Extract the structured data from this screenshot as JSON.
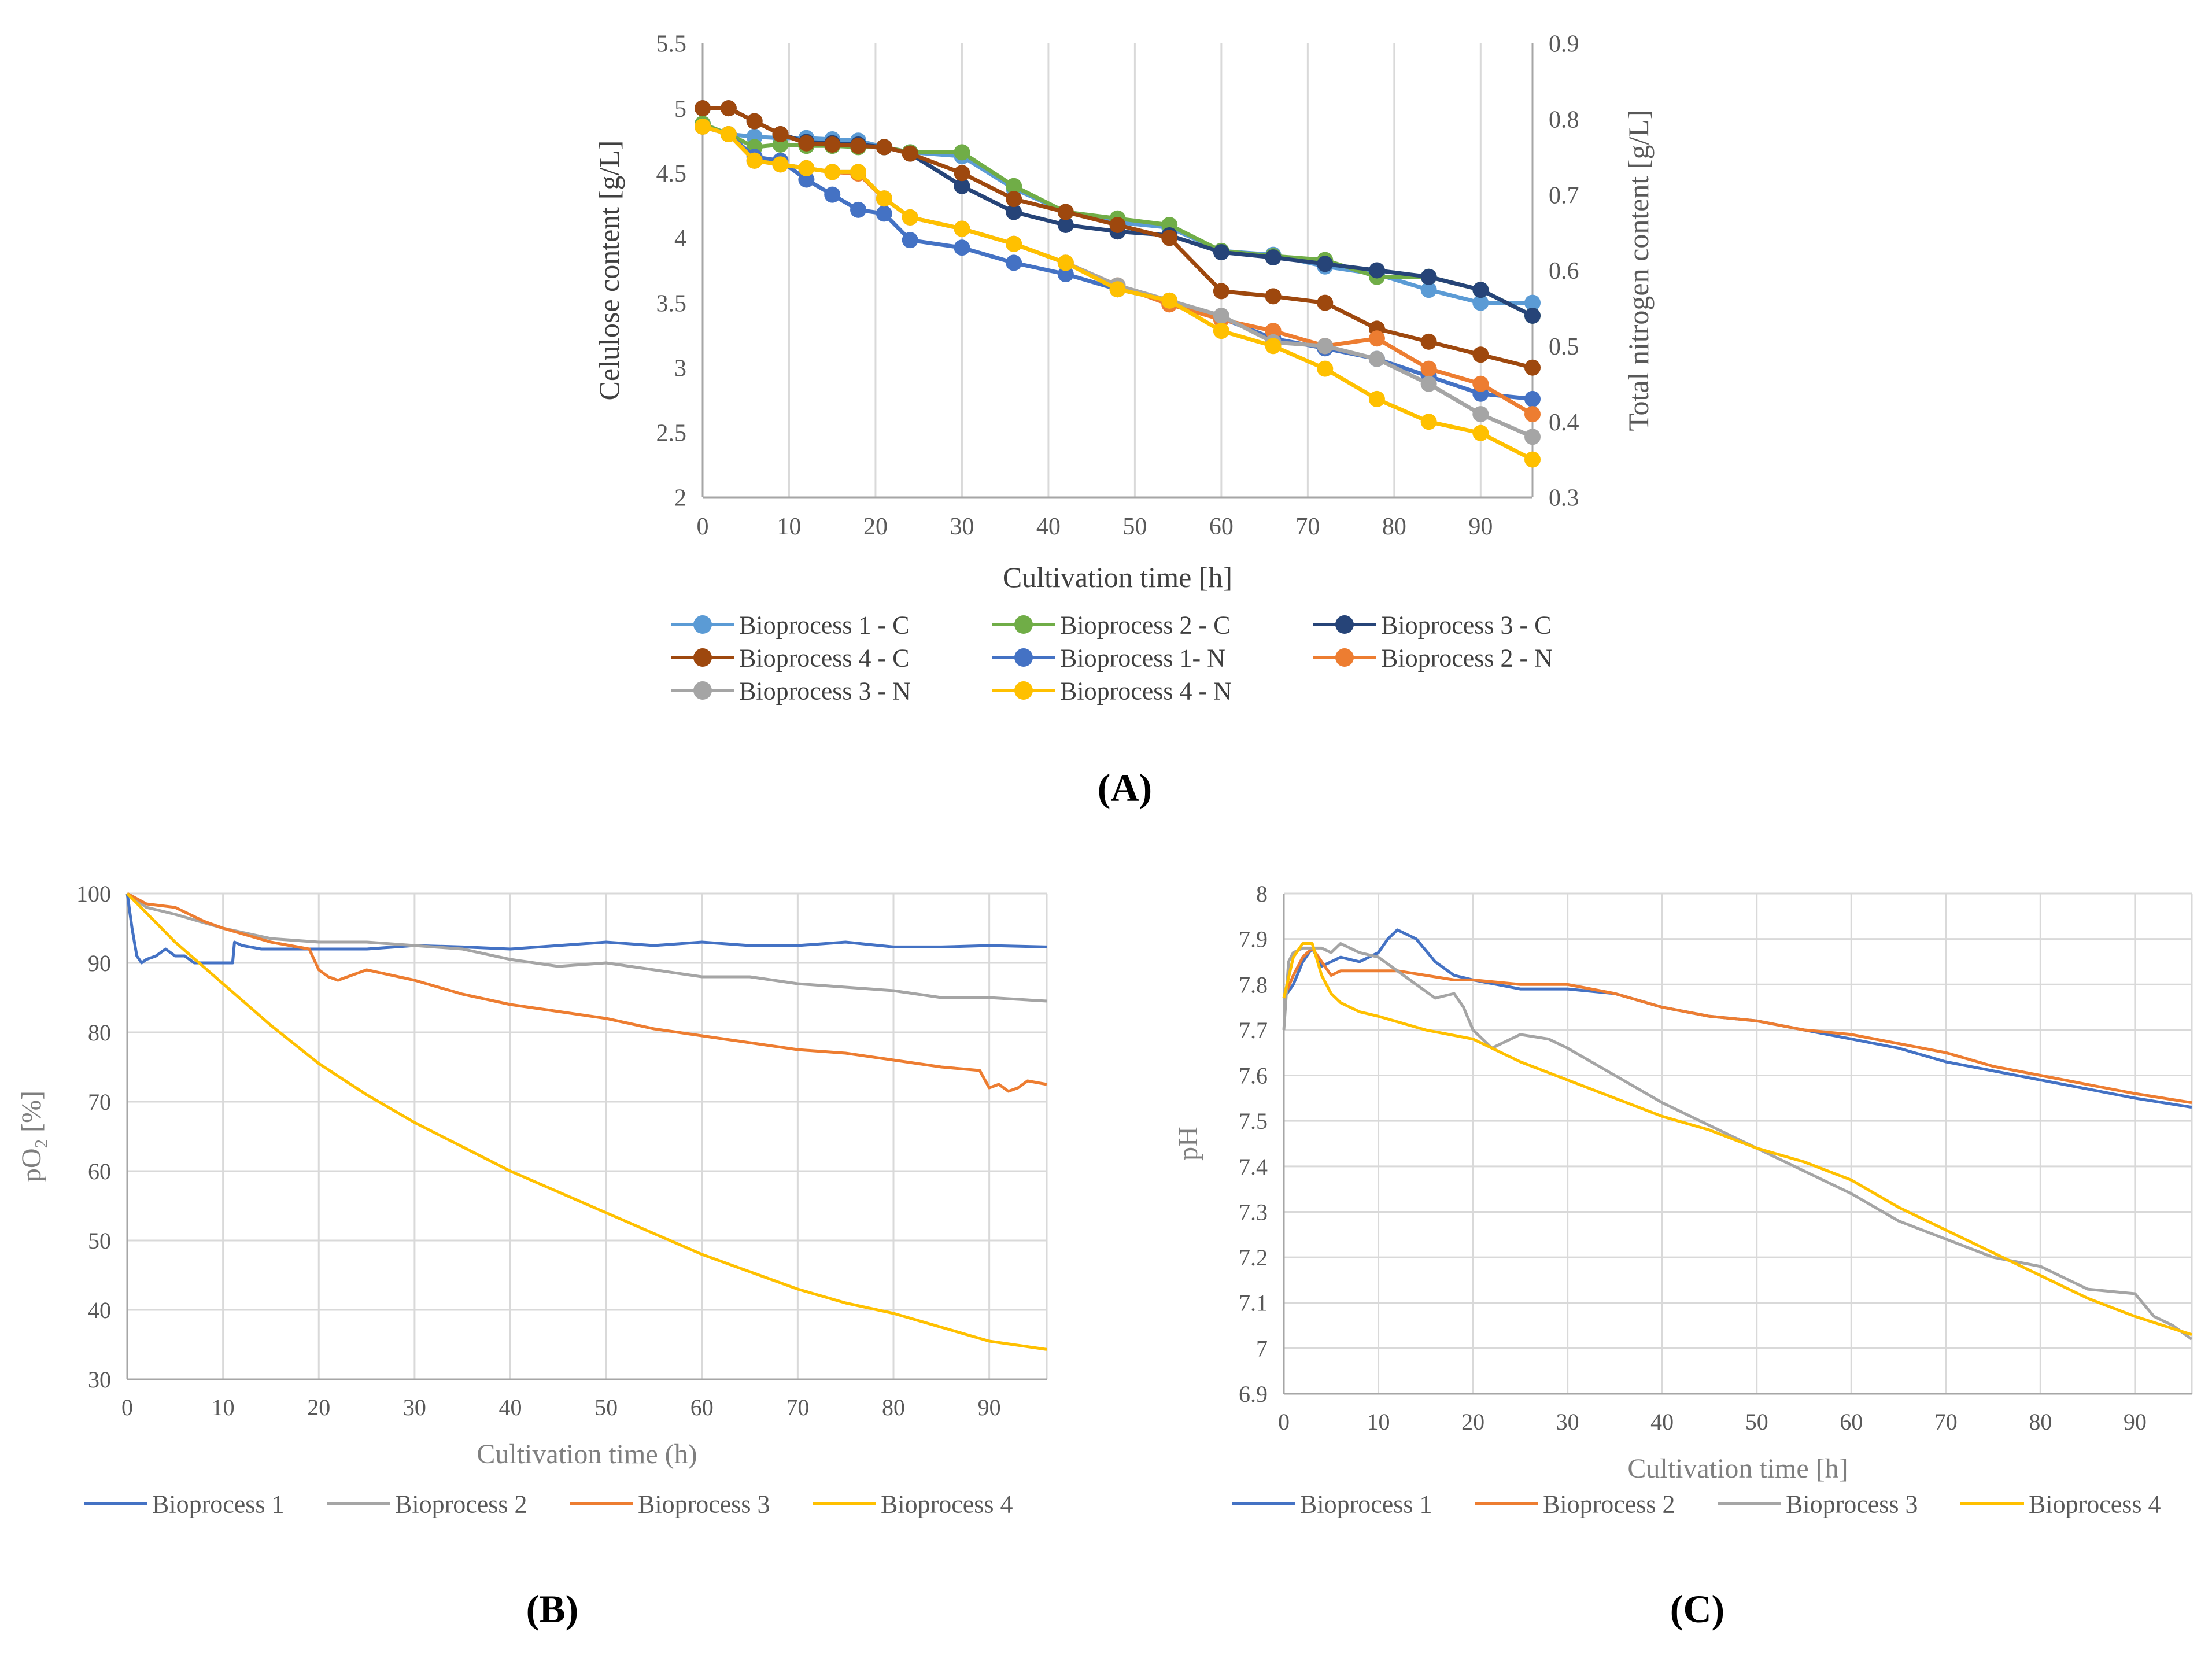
{
  "panel_labels": {
    "A": "(A)",
    "B": "(B)",
    "C": "(C)"
  },
  "chart_data": [
    {
      "id": "A",
      "type": "line",
      "title": "",
      "xlabel": "Cultivation time [h]",
      "ylabel": "Celulose content [g/L]",
      "y2label": "Total nitrogen content [g/L]",
      "xlim": [
        0,
        96
      ],
      "ylim": [
        2,
        5.5
      ],
      "y2lim": [
        0.3,
        0.9
      ],
      "xticks": [
        0,
        10,
        20,
        30,
        40,
        50,
        60,
        70,
        80,
        90
      ],
      "yticks": [
        2,
        2.5,
        3,
        3.5,
        4,
        4.5,
        5,
        5.5
      ],
      "y2ticks": [
        0.3,
        0.4,
        0.5,
        0.6,
        0.7,
        0.8,
        0.9
      ],
      "grid": "vertical",
      "markers": true,
      "legend_position": "bottom",
      "legend_columns": 3,
      "series": [
        {
          "name": "Bioprocess 1 - C",
          "color": "#5B9BD5",
          "axis": "left",
          "x": [
            0,
            3,
            6,
            9,
            12,
            15,
            18,
            21,
            24,
            30,
            36,
            42,
            48,
            54,
            60,
            66,
            72,
            78,
            84,
            90,
            96
          ],
          "y": [
            4.88,
            4.8,
            4.78,
            4.77,
            4.77,
            4.76,
            4.75,
            4.7,
            4.66,
            4.63,
            4.38,
            4.2,
            4.12,
            4.08,
            3.9,
            3.87,
            3.78,
            3.72,
            3.6,
            3.5,
            3.5
          ]
        },
        {
          "name": "Bioprocess 2 - C",
          "color": "#70AD47",
          "axis": "left",
          "x": [
            0,
            3,
            6,
            9,
            12,
            15,
            18,
            21,
            24,
            30,
            36,
            42,
            48,
            54,
            60,
            66,
            72,
            78,
            84,
            90,
            96
          ],
          "y": [
            4.88,
            4.8,
            4.7,
            4.72,
            4.71,
            4.71,
            4.7,
            4.7,
            4.66,
            4.66,
            4.4,
            4.2,
            4.15,
            4.1,
            3.9,
            3.86,
            3.83,
            3.7,
            3.7,
            3.6,
            3.4
          ]
        },
        {
          "name": "Bioprocess 3 - C",
          "color": "#264478",
          "axis": "left",
          "x": [
            0,
            3,
            6,
            9,
            12,
            15,
            18,
            21,
            24,
            30,
            36,
            42,
            48,
            54,
            60,
            66,
            72,
            78,
            84,
            90,
            96
          ],
          "y": [
            5.0,
            5.0,
            4.9,
            4.8,
            4.74,
            4.73,
            4.72,
            4.7,
            4.65,
            4.4,
            4.2,
            4.1,
            4.05,
            4.02,
            3.89,
            3.85,
            3.8,
            3.75,
            3.7,
            3.6,
            3.4
          ]
        },
        {
          "name": "Bioprocess 4 - C",
          "color": "#9E480E",
          "axis": "left",
          "x": [
            0,
            3,
            6,
            9,
            12,
            15,
            18,
            21,
            24,
            30,
            36,
            42,
            48,
            54,
            60,
            66,
            72,
            78,
            84,
            90,
            96
          ],
          "y": [
            5.0,
            5.0,
            4.9,
            4.8,
            4.73,
            4.72,
            4.71,
            4.7,
            4.65,
            4.5,
            4.3,
            4.2,
            4.1,
            4.0,
            3.59,
            3.55,
            3.5,
            3.3,
            3.2,
            3.1,
            3.0
          ]
        },
        {
          "name": "Bioprocess 1- N",
          "color": "#4472C4",
          "axis": "right",
          "x": [
            0,
            3,
            6,
            9,
            12,
            15,
            18,
            21,
            24,
            30,
            36,
            42,
            48,
            54,
            60,
            66,
            72,
            78,
            84,
            90,
            96
          ],
          "y": [
            0.79,
            0.78,
            0.75,
            0.745,
            0.72,
            0.7,
            0.68,
            0.675,
            0.64,
            0.63,
            0.61,
            0.595,
            0.575,
            0.56,
            0.537,
            0.51,
            0.497,
            0.483,
            0.46,
            0.437,
            0.43
          ]
        },
        {
          "name": "Bioprocess 2 - N",
          "color": "#ED7D31",
          "axis": "right",
          "x": [
            0,
            3,
            6,
            9,
            12,
            15,
            18,
            21,
            24,
            30,
            36,
            42,
            48,
            54,
            60,
            66,
            72,
            78,
            84,
            90,
            96
          ],
          "y": [
            0.79,
            0.78,
            0.745,
            0.74,
            0.735,
            0.73,
            0.728,
            0.695,
            0.67,
            0.655,
            0.635,
            0.61,
            0.58,
            0.555,
            0.535,
            0.52,
            0.5,
            0.51,
            0.47,
            0.45,
            0.41
          ]
        },
        {
          "name": "Bioprocess 3 - N",
          "color": "#A5A5A5",
          "axis": "right",
          "x": [
            0,
            3,
            6,
            9,
            12,
            15,
            18,
            21,
            24,
            30,
            36,
            42,
            48,
            54,
            60,
            66,
            72,
            78,
            84,
            90,
            96
          ],
          "y": [
            0.79,
            0.78,
            0.745,
            0.74,
            0.735,
            0.73,
            0.73,
            0.695,
            0.67,
            0.655,
            0.635,
            0.61,
            0.58,
            0.56,
            0.54,
            0.505,
            0.5,
            0.483,
            0.45,
            0.41,
            0.38
          ]
        },
        {
          "name": "Bioprocess 4 - N",
          "color": "#FFC000",
          "axis": "right",
          "x": [
            0,
            3,
            6,
            9,
            12,
            15,
            18,
            21,
            24,
            30,
            36,
            42,
            48,
            54,
            60,
            66,
            72,
            78,
            84,
            90,
            96
          ],
          "y": [
            0.79,
            0.78,
            0.745,
            0.74,
            0.735,
            0.73,
            0.73,
            0.695,
            0.67,
            0.655,
            0.635,
            0.61,
            0.575,
            0.56,
            0.52,
            0.5,
            0.47,
            0.43,
            0.4,
            0.385,
            0.35
          ]
        }
      ]
    },
    {
      "id": "B",
      "type": "line",
      "title": "",
      "xlabel": "Cultivation time (h)",
      "ylabel_main": "pO",
      "ylabel_sub": "2",
      "ylabel_tail": " [%]",
      "xlim": [
        0,
        96
      ],
      "ylim": [
        30,
        100
      ],
      "xticks": [
        0,
        10,
        20,
        30,
        40,
        50,
        60,
        70,
        80,
        90
      ],
      "yticks": [
        30,
        40,
        50,
        60,
        70,
        80,
        90,
        100
      ],
      "grid": "both",
      "markers": false,
      "legend_position": "bottom",
      "series": [
        {
          "name": "Bioprocess 1",
          "color": "#4472C4",
          "x": [
            0,
            0.5,
            1,
            1.5,
            2,
            3,
            4,
            5,
            6,
            7,
            8,
            9,
            10,
            11,
            11.2,
            12,
            14,
            16,
            18,
            20,
            25,
            30,
            35,
            40,
            45,
            50,
            55,
            60,
            65,
            70,
            75,
            80,
            85,
            90,
            96
          ],
          "y": [
            100,
            95,
            91,
            90,
            90.5,
            91,
            92,
            91,
            91,
            90,
            90,
            90,
            90,
            90,
            93,
            92.5,
            92,
            92,
            92,
            92,
            92,
            92.5,
            92.3,
            92,
            92.5,
            93,
            92.5,
            93,
            92.5,
            92.5,
            93,
            92.3,
            92.3,
            92.5,
            92.3
          ]
        },
        {
          "name": "Bioprocess 2",
          "color": "#A5A5A5",
          "x": [
            0,
            2,
            5,
            10,
            15,
            20,
            25,
            30,
            35,
            40,
            45,
            50,
            55,
            60,
            65,
            70,
            75,
            80,
            85,
            90,
            96
          ],
          "y": [
            100,
            98,
            97,
            95,
            93.5,
            93,
            93,
            92.5,
            92,
            90.5,
            89.5,
            90,
            89,
            88,
            88,
            87,
            86.5,
            86,
            85,
            85,
            84.5
          ]
        },
        {
          "name": "Bioprocess 3",
          "color": "#ED7D31",
          "x": [
            0,
            2,
            5,
            8,
            10,
            15,
            19,
            20,
            21,
            22,
            25,
            30,
            35,
            40,
            45,
            50,
            55,
            60,
            65,
            70,
            75,
            80,
            85,
            89,
            90,
            91,
            92,
            93,
            94,
            96
          ],
          "y": [
            100,
            98.5,
            98,
            96,
            95,
            93,
            92,
            89,
            88,
            87.5,
            89,
            87.5,
            85.5,
            84,
            83,
            82,
            80.5,
            79.5,
            78.5,
            77.5,
            77,
            76,
            75,
            74.5,
            72,
            72.5,
            71.5,
            72,
            73,
            72.5
          ]
        },
        {
          "name": "Bioprocess 4",
          "color": "#FFC000",
          "x": [
            0,
            5,
            10,
            15,
            20,
            25,
            30,
            35,
            40,
            45,
            50,
            55,
            60,
            65,
            70,
            75,
            80,
            85,
            90,
            96
          ],
          "y": [
            100,
            93,
            87,
            81,
            75.5,
            71,
            67,
            63.5,
            60,
            57,
            54,
            51,
            48,
            45.5,
            43,
            41,
            39.5,
            37.5,
            35.5,
            34.3
          ]
        }
      ]
    },
    {
      "id": "C",
      "type": "line",
      "title": "",
      "xlabel": "Cultivation time [h]",
      "ylabel": "pH",
      "xlim": [
        0,
        96
      ],
      "ylim": [
        6.9,
        8.0
      ],
      "xticks": [
        0,
        10,
        20,
        30,
        40,
        50,
        60,
        70,
        80,
        90
      ],
      "yticks": [
        6.9,
        7,
        7.1,
        7.2,
        7.3,
        7.4,
        7.5,
        7.6,
        7.7,
        7.8,
        7.9,
        8
      ],
      "grid": "both",
      "markers": false,
      "legend_position": "bottom",
      "series": [
        {
          "name": "Bioprocess 1",
          "color": "#4472C4",
          "x": [
            0,
            1,
            2,
            3,
            4,
            5,
            6,
            8,
            10,
            11,
            12,
            14,
            16,
            18,
            20,
            25,
            30,
            35,
            40,
            45,
            50,
            55,
            60,
            65,
            70,
            75,
            80,
            85,
            90,
            96
          ],
          "y": [
            7.77,
            7.8,
            7.85,
            7.88,
            7.84,
            7.85,
            7.86,
            7.85,
            7.87,
            7.9,
            7.92,
            7.9,
            7.85,
            7.82,
            7.81,
            7.79,
            7.79,
            7.78,
            7.75,
            7.73,
            7.72,
            7.7,
            7.68,
            7.66,
            7.63,
            7.61,
            7.59,
            7.57,
            7.55,
            7.53
          ]
        },
        {
          "name": "Bioprocess 2",
          "color": "#ED7D31",
          "x": [
            0,
            1,
            2,
            3,
            4,
            5,
            6,
            8,
            10,
            12,
            15,
            18,
            20,
            25,
            30,
            35,
            40,
            45,
            50,
            55,
            60,
            65,
            70,
            75,
            80,
            85,
            90,
            96
          ],
          "y": [
            7.77,
            7.82,
            7.86,
            7.88,
            7.85,
            7.82,
            7.83,
            7.83,
            7.83,
            7.83,
            7.82,
            7.81,
            7.81,
            7.8,
            7.8,
            7.78,
            7.75,
            7.73,
            7.72,
            7.7,
            7.69,
            7.67,
            7.65,
            7.62,
            7.6,
            7.58,
            7.56,
            7.54
          ]
        },
        {
          "name": "Bioprocess 3",
          "color": "#A5A5A5",
          "x": [
            0,
            0.5,
            1,
            2,
            3,
            4,
            5,
            6,
            8,
            10,
            12,
            14,
            16,
            18,
            19,
            20,
            21,
            22,
            23,
            25,
            28,
            30,
            35,
            40,
            45,
            50,
            55,
            60,
            65,
            70,
            75,
            80,
            85,
            90,
            92,
            94,
            96
          ],
          "y": [
            7.7,
            7.85,
            7.87,
            7.88,
            7.88,
            7.88,
            7.87,
            7.89,
            7.87,
            7.86,
            7.83,
            7.8,
            7.77,
            7.78,
            7.75,
            7.7,
            7.68,
            7.66,
            7.67,
            7.69,
            7.68,
            7.66,
            7.6,
            7.54,
            7.49,
            7.44,
            7.39,
            7.34,
            7.28,
            7.24,
            7.2,
            7.18,
            7.13,
            7.12,
            7.07,
            7.05,
            7.02
          ]
        },
        {
          "name": "Bioprocess 4",
          "color": "#FFC000",
          "x": [
            0,
            1,
            2,
            3,
            4,
            5,
            6,
            8,
            10,
            15,
            20,
            25,
            30,
            35,
            40,
            45,
            50,
            55,
            60,
            65,
            70,
            75,
            80,
            85,
            90,
            96
          ],
          "y": [
            7.77,
            7.86,
            7.89,
            7.89,
            7.82,
            7.78,
            7.76,
            7.74,
            7.73,
            7.7,
            7.68,
            7.63,
            7.59,
            7.55,
            7.51,
            7.48,
            7.44,
            7.41,
            7.37,
            7.31,
            7.26,
            7.21,
            7.16,
            7.11,
            7.07,
            7.03
          ]
        }
      ]
    }
  ]
}
